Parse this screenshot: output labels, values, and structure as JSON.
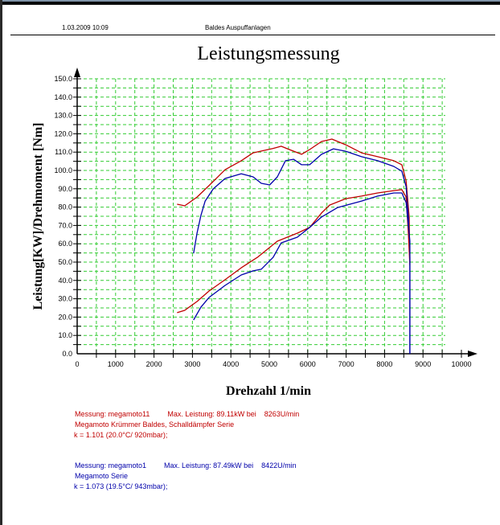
{
  "header": {
    "date_time": "1.03.2009  10:09",
    "company": "Baldes Auspuffanlagen"
  },
  "colors": {
    "red_series": "#c00000",
    "blue_series": "#0000aa",
    "grid": "#33cc33"
  },
  "chart_data": {
    "type": "line",
    "title": "Leistungsmessung",
    "xlabel": "Drehzahl 1/min",
    "ylabel": "Leistung[KW]/Drehmoment [Nm]",
    "xlim": [
      0,
      10000
    ],
    "ylim": [
      0,
      150
    ],
    "grid": true,
    "x_ticks": [
      "0",
      "1000",
      "2000",
      "3000",
      "4000",
      "5000",
      "6000",
      "7000",
      "8000",
      "9000",
      "10000"
    ],
    "y_ticks": [
      "0.0",
      "10.0",
      "20.0",
      "30.0",
      "40.0",
      "50.0",
      "60.0",
      "70.0",
      "80.0",
      "90.0",
      "100.0",
      "110.0",
      "120.0",
      "130.0",
      "140.0",
      "150.0"
    ],
    "series": [
      {
        "name": "megamoto11 Drehmoment",
        "color": "#c00000",
        "x": [
          2600,
          2800,
          3120,
          3430,
          3850,
          4270,
          4580,
          5100,
          5310,
          5520,
          5840,
          6050,
          6360,
          6630,
          6990,
          7400,
          7820,
          8240,
          8450,
          8560,
          8640,
          8660
        ],
        "y": [
          81.6,
          80.7,
          85.5,
          91.7,
          100.4,
          105.3,
          109.6,
          112.0,
          113.2,
          111.4,
          108.8,
          111.4,
          115.8,
          117.1,
          114.0,
          109.6,
          107.5,
          105.3,
          103.1,
          94.3,
          74.6,
          50.0
        ]
      },
      {
        "name": "megamoto1 Drehmoment",
        "color": "#0000aa",
        "x": [
          3030,
          3120,
          3220,
          3330,
          3540,
          3850,
          4270,
          4580,
          4790,
          5010,
          5210,
          5420,
          5630,
          5840,
          6050,
          6360,
          6670,
          6990,
          7400,
          7820,
          8240,
          8450,
          8560,
          8620,
          8660,
          8660
        ],
        "y": [
          54.8,
          65.8,
          75.4,
          83.3,
          89.9,
          95.6,
          98.2,
          96.5,
          93.0,
          92.1,
          96.5,
          105.3,
          106.1,
          103.1,
          103.1,
          108.8,
          111.8,
          110.5,
          107.5,
          105.3,
          102.2,
          99.6,
          91.2,
          74.6,
          52.6,
          0.0
        ]
      },
      {
        "name": "megamoto11 Leistung",
        "color": "#c00000",
        "x": [
          2600,
          2800,
          3120,
          3430,
          3850,
          4270,
          4690,
          5210,
          5730,
          6050,
          6360,
          6570,
          6990,
          7400,
          7820,
          8240,
          8450,
          8560,
          8620,
          8660
        ],
        "y": [
          22.4,
          23.7,
          28.5,
          34.2,
          40.4,
          46.9,
          52.6,
          61.4,
          65.8,
          68.9,
          76.8,
          81.1,
          84.6,
          86.0,
          87.7,
          89.0,
          89.5,
          85.5,
          65.8,
          48.2
        ]
      },
      {
        "name": "megamoto1 Leistung",
        "color": "#0000aa",
        "x": [
          3030,
          3220,
          3430,
          3850,
          4270,
          4580,
          4790,
          5100,
          5310,
          5730,
          6050,
          6360,
          6780,
          7400,
          7820,
          8240,
          8450,
          8560,
          8660,
          8660
        ],
        "y": [
          18.4,
          25.4,
          30.7,
          37.3,
          43.0,
          45.2,
          46.1,
          52.6,
          60.5,
          63.6,
          68.9,
          74.6,
          79.8,
          83.3,
          86.0,
          87.7,
          87.7,
          82.5,
          61.4,
          0.0
        ]
      }
    ]
  },
  "measurements": [
    {
      "line1_name": "Messung: megamoto11",
      "line1_max": "Max. Leistung: 89.11kW bei    8263U/min",
      "line2": "Megamoto Krümmer Baldes, Schalldämpfer Serie",
      "line3": "k = 1.101 (20.0°C/ 920mbar);"
    },
    {
      "line1_name": "Messung: megamoto1",
      "line1_max": "Max. Leistung: 87.49kW bei    8422U/min",
      "line2": "Megamoto Serie",
      "line3": "k = 1.073 (19.5°C/ 943mbar);"
    }
  ]
}
